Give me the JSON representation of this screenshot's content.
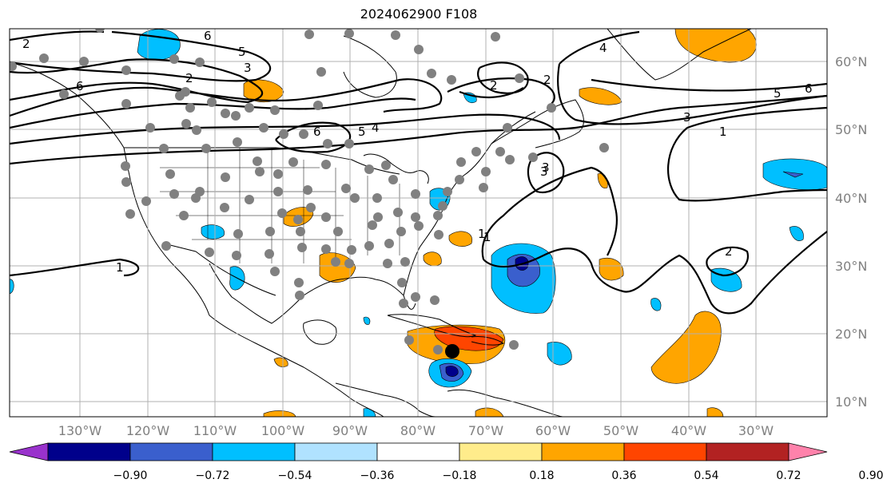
{
  "title": "2024062900 F108",
  "lon_ticks": [
    "130°W",
    "120°W",
    "110°W",
    "100°W",
    "90°W",
    "80°W",
    "70°W",
    "60°W",
    "50°W",
    "40°W",
    "30°W"
  ],
  "lat_ticks": [
    "60°N",
    "50°N",
    "40°N",
    "30°N",
    "20°N",
    "10°N"
  ],
  "colorbar": {
    "colors": [
      "#9932cc",
      "#00008b",
      "#3a5fcd",
      "#00bfff",
      "#b0e2ff",
      "#ffffff",
      "#ffec8b",
      "#ffa500",
      "#ff4500",
      "#b22222",
      "#ff82ab"
    ],
    "labels": [
      "−0.90",
      "−0.72",
      "−0.54",
      "−0.36",
      "−0.18",
      "0.18",
      "0.36",
      "0.54",
      "0.72",
      "0.90"
    ]
  },
  "contour_labels": [
    "2",
    "6",
    "5",
    "3",
    "2",
    "6",
    "5",
    "4",
    "6",
    "3",
    "3",
    "1",
    "2",
    "1",
    "4",
    "5",
    "6",
    "3",
    "1",
    "2",
    "2",
    "1"
  ],
  "colors": {
    "land_outline": "#000000",
    "grid": "#b0b0b0",
    "station_dot": "#808080",
    "storm_marker": "#000000",
    "positive_fill": "#ffa500",
    "strong_positive_fill": "#ff4500",
    "negative_fill": "#00bfff",
    "strong_negative_fill": "#3a5fcd"
  }
}
